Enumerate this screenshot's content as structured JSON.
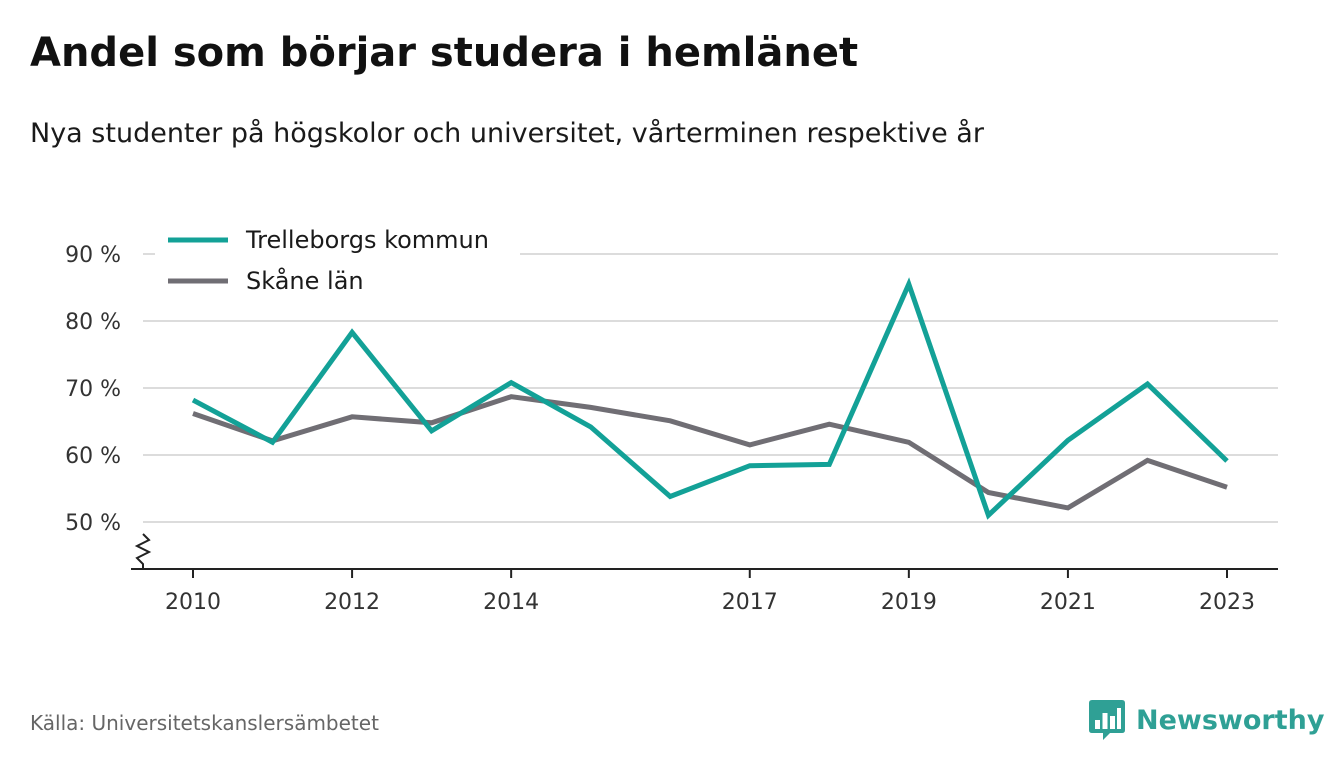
{
  "header": {
    "title": "Andel som börjar studera i hemlänet",
    "subtitle": "Nya studenter på högskolor och universitet, vårterminen respektive år"
  },
  "footer": {
    "source": "Källa: Universitetskanslersämbetet",
    "brand": "Newsworthy",
    "brand_icon": "bar-chart-speech-bubble-icon"
  },
  "chart_data": {
    "type": "line",
    "x": [
      2010,
      2011,
      2012,
      2013,
      2014,
      2015,
      2016,
      2017,
      2018,
      2019,
      2020,
      2021,
      2022,
      2023
    ],
    "x_tick_labels": [
      "2010",
      "2012",
      "2014",
      "2017",
      "2019",
      "2021",
      "2023"
    ],
    "series": [
      {
        "name": "Trelleborgs kommun",
        "color": "#13a197",
        "values": [
          68.2,
          61.9,
          78.3,
          63.6,
          70.8,
          64.2,
          53.8,
          58.4,
          58.6,
          85.5,
          51.0,
          62.2,
          70.6,
          59.1
        ]
      },
      {
        "name": "Skåne län",
        "color": "#706e74",
        "values": [
          66.2,
          62.1,
          65.7,
          64.8,
          68.7,
          67.1,
          65.1,
          61.5,
          64.6,
          61.9,
          54.4,
          52.1,
          59.2,
          55.2
        ]
      }
    ],
    "y_ticks": [
      50,
      60,
      70,
      80,
      90
    ],
    "y_tick_labels": [
      "50 %",
      "60 %",
      "70 %",
      "80 %",
      "90 %"
    ],
    "ylim": [
      50,
      90
    ],
    "y_axis_break": true,
    "grid": true,
    "legend_position": "top-left"
  }
}
